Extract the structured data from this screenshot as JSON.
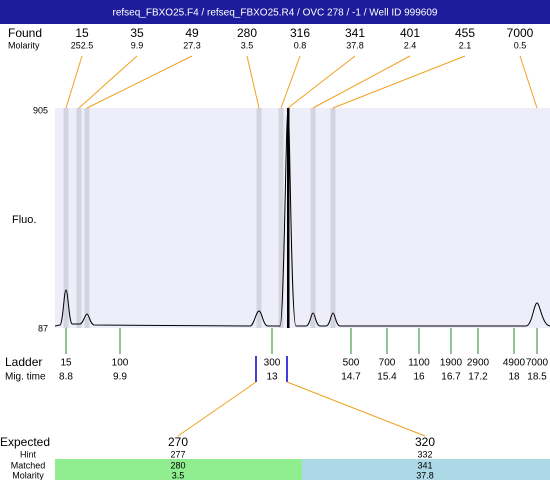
{
  "header": {
    "title": "refseq_FBXO25.F4 / refseq_FBXO25.R4 / OVC 278 / -1 / Well ID 999609"
  },
  "found": {
    "label": "Found",
    "sublabel": "Molarity",
    "peaks": [
      {
        "size": 15,
        "molarity": 252.5
      },
      {
        "size": 35,
        "molarity": 9.9
      },
      {
        "size": 49,
        "molarity": 27.3
      },
      {
        "size": 280,
        "molarity": 3.5
      },
      {
        "size": 316,
        "molarity": 0.8
      },
      {
        "size": 341,
        "molarity": 37.8
      },
      {
        "size": 401,
        "molarity": 2.4
      },
      {
        "size": 455,
        "molarity": 2.1
      },
      {
        "size": 7000,
        "molarity": 0.5
      }
    ]
  },
  "plot": {
    "y_axis_label": "Fluo.",
    "y_max": 905,
    "y_min": 87
  },
  "ladder": {
    "label": "Ladder",
    "sublabel": "Mig. time",
    "items": [
      {
        "size": 15,
        "time": 8.8
      },
      {
        "size": 100,
        "time": 9.9
      },
      {
        "size": 300,
        "time": 13
      },
      {
        "size": 500,
        "time": 14.7
      },
      {
        "size": 700,
        "time": 15.4
      },
      {
        "size": 1100,
        "time": 16
      },
      {
        "size": 1900,
        "time": 16.7
      },
      {
        "size": 2900,
        "time": 17.2
      },
      {
        "size": 4900,
        "time": 18
      },
      {
        "size": 7000,
        "time": 18.5
      }
    ]
  },
  "expected": {
    "label": "Expected",
    "hint_label": "Hint",
    "matched_label": "Matched",
    "molarity_label": "Molarity",
    "items": [
      {
        "expected": 270,
        "hint": 277,
        "matched": 280,
        "molarity": 3.5
      },
      {
        "expected": 320,
        "hint": 332,
        "matched": 341,
        "molarity": 37.8
      }
    ]
  }
}
